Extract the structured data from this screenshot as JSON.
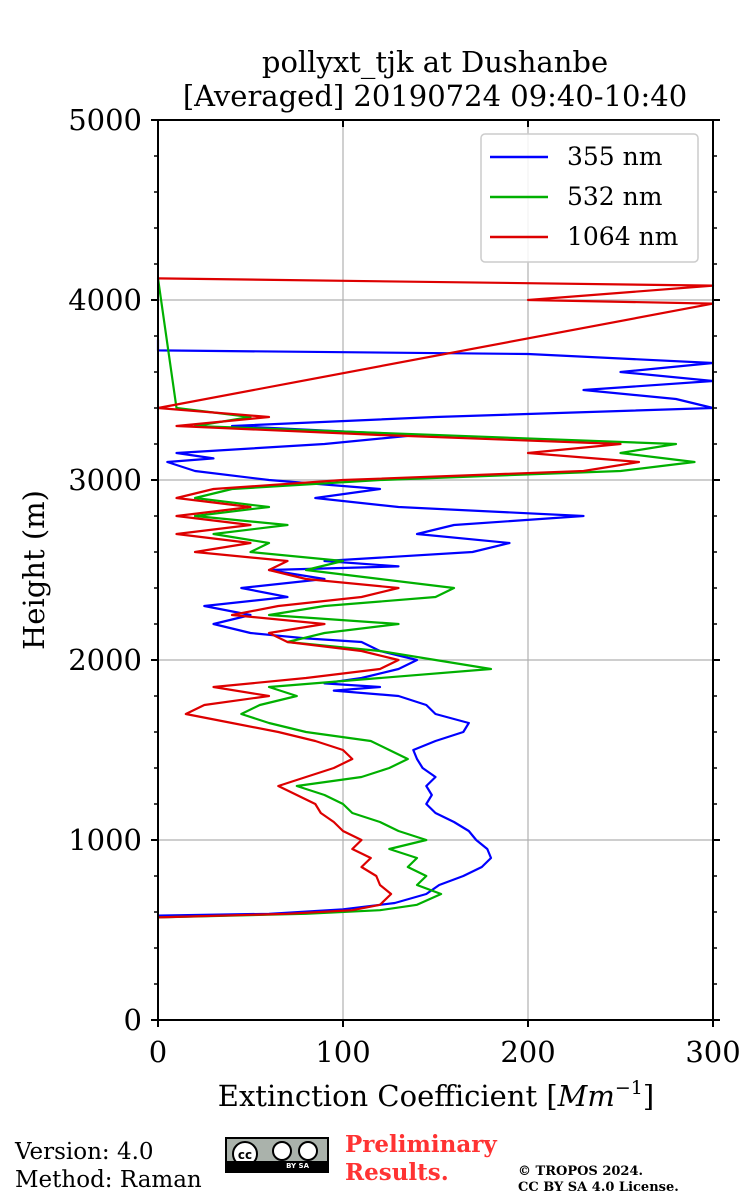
{
  "chart_data": {
    "type": "line",
    "title_line1": "pollyxt_tjk at Dushanbe",
    "title_line2": "[Averaged] 20190724 09:40-10:40",
    "xlabel": "Extinction Coefficient [",
    "xlabel_unit": "Mm",
    "xlabel_exp": "−1",
    "xlabel_close": "]",
    "ylabel": "Height (m)",
    "xlim": [
      0,
      300
    ],
    "ylim": [
      0,
      5000
    ],
    "x_ticks": [
      "0",
      "100",
      "200",
      "300"
    ],
    "y_ticks": [
      "0",
      "1000",
      "2000",
      "3000",
      "4000",
      "5000"
    ],
    "grid": true,
    "legend_position": "top-right",
    "series": [
      {
        "name": "355 nm",
        "color": "#0000ff",
        "points": [
          [
            0,
            580
          ],
          [
            60,
            590
          ],
          [
            100,
            615
          ],
          [
            128,
            650
          ],
          [
            145,
            700
          ],
          [
            152,
            750
          ],
          [
            165,
            800
          ],
          [
            175,
            850
          ],
          [
            180,
            900
          ],
          [
            178,
            950
          ],
          [
            172,
            1000
          ],
          [
            168,
            1050
          ],
          [
            160,
            1100
          ],
          [
            150,
            1150
          ],
          [
            145,
            1200
          ],
          [
            148,
            1250
          ],
          [
            145,
            1300
          ],
          [
            150,
            1350
          ],
          [
            143,
            1400
          ],
          [
            140,
            1450
          ],
          [
            138,
            1500
          ],
          [
            150,
            1550
          ],
          [
            165,
            1600
          ],
          [
            168,
            1650
          ],
          [
            150,
            1700
          ],
          [
            145,
            1750
          ],
          [
            130,
            1800
          ],
          [
            95,
            1830
          ],
          [
            120,
            1850
          ],
          [
            90,
            1870
          ],
          [
            110,
            1900
          ],
          [
            130,
            1950
          ],
          [
            140,
            2000
          ],
          [
            120,
            2050
          ],
          [
            110,
            2100
          ],
          [
            80,
            2120
          ],
          [
            50,
            2150
          ],
          [
            30,
            2200
          ],
          [
            50,
            2250
          ],
          [
            25,
            2300
          ],
          [
            70,
            2350
          ],
          [
            45,
            2400
          ],
          [
            90,
            2450
          ],
          [
            60,
            2500
          ],
          [
            130,
            2520
          ],
          [
            90,
            2550
          ],
          [
            170,
            2600
          ],
          [
            190,
            2650
          ],
          [
            140,
            2700
          ],
          [
            160,
            2750
          ],
          [
            230,
            2800
          ],
          [
            130,
            2850
          ],
          [
            85,
            2900
          ],
          [
            120,
            2950
          ],
          [
            60,
            3000
          ],
          [
            20,
            3050
          ],
          [
            5,
            3100
          ],
          [
            30,
            3120
          ],
          [
            10,
            3150
          ],
          [
            90,
            3200
          ],
          [
            140,
            3250
          ],
          [
            40,
            3300
          ],
          [
            150,
            3350
          ],
          [
            300,
            3400
          ],
          [
            280,
            3450
          ],
          [
            230,
            3500
          ],
          [
            300,
            3550
          ],
          [
            250,
            3600
          ],
          [
            300,
            3650
          ],
          [
            200,
            3700
          ],
          [
            0,
            3720
          ],
          [
            0,
            3780
          ]
        ]
      },
      {
        "name": "532 nm",
        "color": "#00b000",
        "points": [
          [
            0,
            570
          ],
          [
            80,
            590
          ],
          [
            120,
            610
          ],
          [
            140,
            640
          ],
          [
            153,
            700
          ],
          [
            140,
            750
          ],
          [
            145,
            800
          ],
          [
            135,
            850
          ],
          [
            140,
            900
          ],
          [
            125,
            950
          ],
          [
            145,
            1000
          ],
          [
            130,
            1050
          ],
          [
            120,
            1100
          ],
          [
            105,
            1150
          ],
          [
            100,
            1200
          ],
          [
            90,
            1250
          ],
          [
            75,
            1300
          ],
          [
            110,
            1350
          ],
          [
            125,
            1400
          ],
          [
            135,
            1450
          ],
          [
            125,
            1500
          ],
          [
            115,
            1550
          ],
          [
            80,
            1600
          ],
          [
            60,
            1650
          ],
          [
            45,
            1700
          ],
          [
            55,
            1750
          ],
          [
            75,
            1800
          ],
          [
            60,
            1850
          ],
          [
            120,
            1900
          ],
          [
            180,
            1950
          ],
          [
            150,
            2000
          ],
          [
            120,
            2050
          ],
          [
            70,
            2100
          ],
          [
            90,
            2150
          ],
          [
            130,
            2200
          ],
          [
            60,
            2250
          ],
          [
            90,
            2300
          ],
          [
            150,
            2350
          ],
          [
            160,
            2400
          ],
          [
            120,
            2450
          ],
          [
            80,
            2500
          ],
          [
            100,
            2550
          ],
          [
            50,
            2600
          ],
          [
            60,
            2650
          ],
          [
            30,
            2700
          ],
          [
            70,
            2750
          ],
          [
            20,
            2800
          ],
          [
            60,
            2850
          ],
          [
            20,
            2900
          ],
          [
            40,
            2950
          ],
          [
            120,
            3000
          ],
          [
            250,
            3050
          ],
          [
            290,
            3100
          ],
          [
            250,
            3150
          ],
          [
            280,
            3200
          ],
          [
            150,
            3250
          ],
          [
            20,
            3300
          ],
          [
            50,
            3350
          ],
          [
            10,
            3400
          ],
          [
            0,
            4120
          ]
        ]
      },
      {
        "name": "1064 nm",
        "color": "#dd0000",
        "points": [
          [
            0,
            570
          ],
          [
            70,
            590
          ],
          [
            105,
            610
          ],
          [
            120,
            640
          ],
          [
            126,
            700
          ],
          [
            120,
            750
          ],
          [
            118,
            800
          ],
          [
            110,
            850
          ],
          [
            115,
            900
          ],
          [
            105,
            950
          ],
          [
            110,
            1000
          ],
          [
            100,
            1050
          ],
          [
            95,
            1100
          ],
          [
            88,
            1150
          ],
          [
            85,
            1200
          ],
          [
            75,
            1250
          ],
          [
            65,
            1300
          ],
          [
            80,
            1350
          ],
          [
            95,
            1400
          ],
          [
            105,
            1450
          ],
          [
            100,
            1500
          ],
          [
            85,
            1550
          ],
          [
            65,
            1600
          ],
          [
            40,
            1650
          ],
          [
            15,
            1700
          ],
          [
            25,
            1750
          ],
          [
            60,
            1800
          ],
          [
            30,
            1850
          ],
          [
            80,
            1900
          ],
          [
            120,
            1950
          ],
          [
            130,
            2000
          ],
          [
            110,
            2050
          ],
          [
            70,
            2100
          ],
          [
            60,
            2150
          ],
          [
            90,
            2200
          ],
          [
            40,
            2250
          ],
          [
            65,
            2300
          ],
          [
            110,
            2350
          ],
          [
            130,
            2400
          ],
          [
            80,
            2450
          ],
          [
            60,
            2500
          ],
          [
            70,
            2550
          ],
          [
            20,
            2600
          ],
          [
            50,
            2650
          ],
          [
            10,
            2700
          ],
          [
            50,
            2750
          ],
          [
            10,
            2800
          ],
          [
            50,
            2850
          ],
          [
            10,
            2900
          ],
          [
            30,
            2950
          ],
          [
            100,
            3000
          ],
          [
            230,
            3050
          ],
          [
            260,
            3100
          ],
          [
            200,
            3150
          ],
          [
            250,
            3200
          ],
          [
            120,
            3250
          ],
          [
            10,
            3300
          ],
          [
            60,
            3350
          ],
          [
            0,
            3400
          ],
          [
            300,
            3980
          ],
          [
            200,
            4000
          ],
          [
            300,
            4080
          ],
          [
            0,
            4120
          ]
        ]
      }
    ]
  },
  "footer": {
    "version": "Version: 4.0",
    "method": "Method: Raman",
    "preliminary_line1": "Preliminary",
    "preliminary_line2": "Results.",
    "copyright_line1": "© TROPOS 2024.",
    "copyright_line2": "CC BY SA 4.0 License.",
    "badge_text": "BY  SA"
  }
}
